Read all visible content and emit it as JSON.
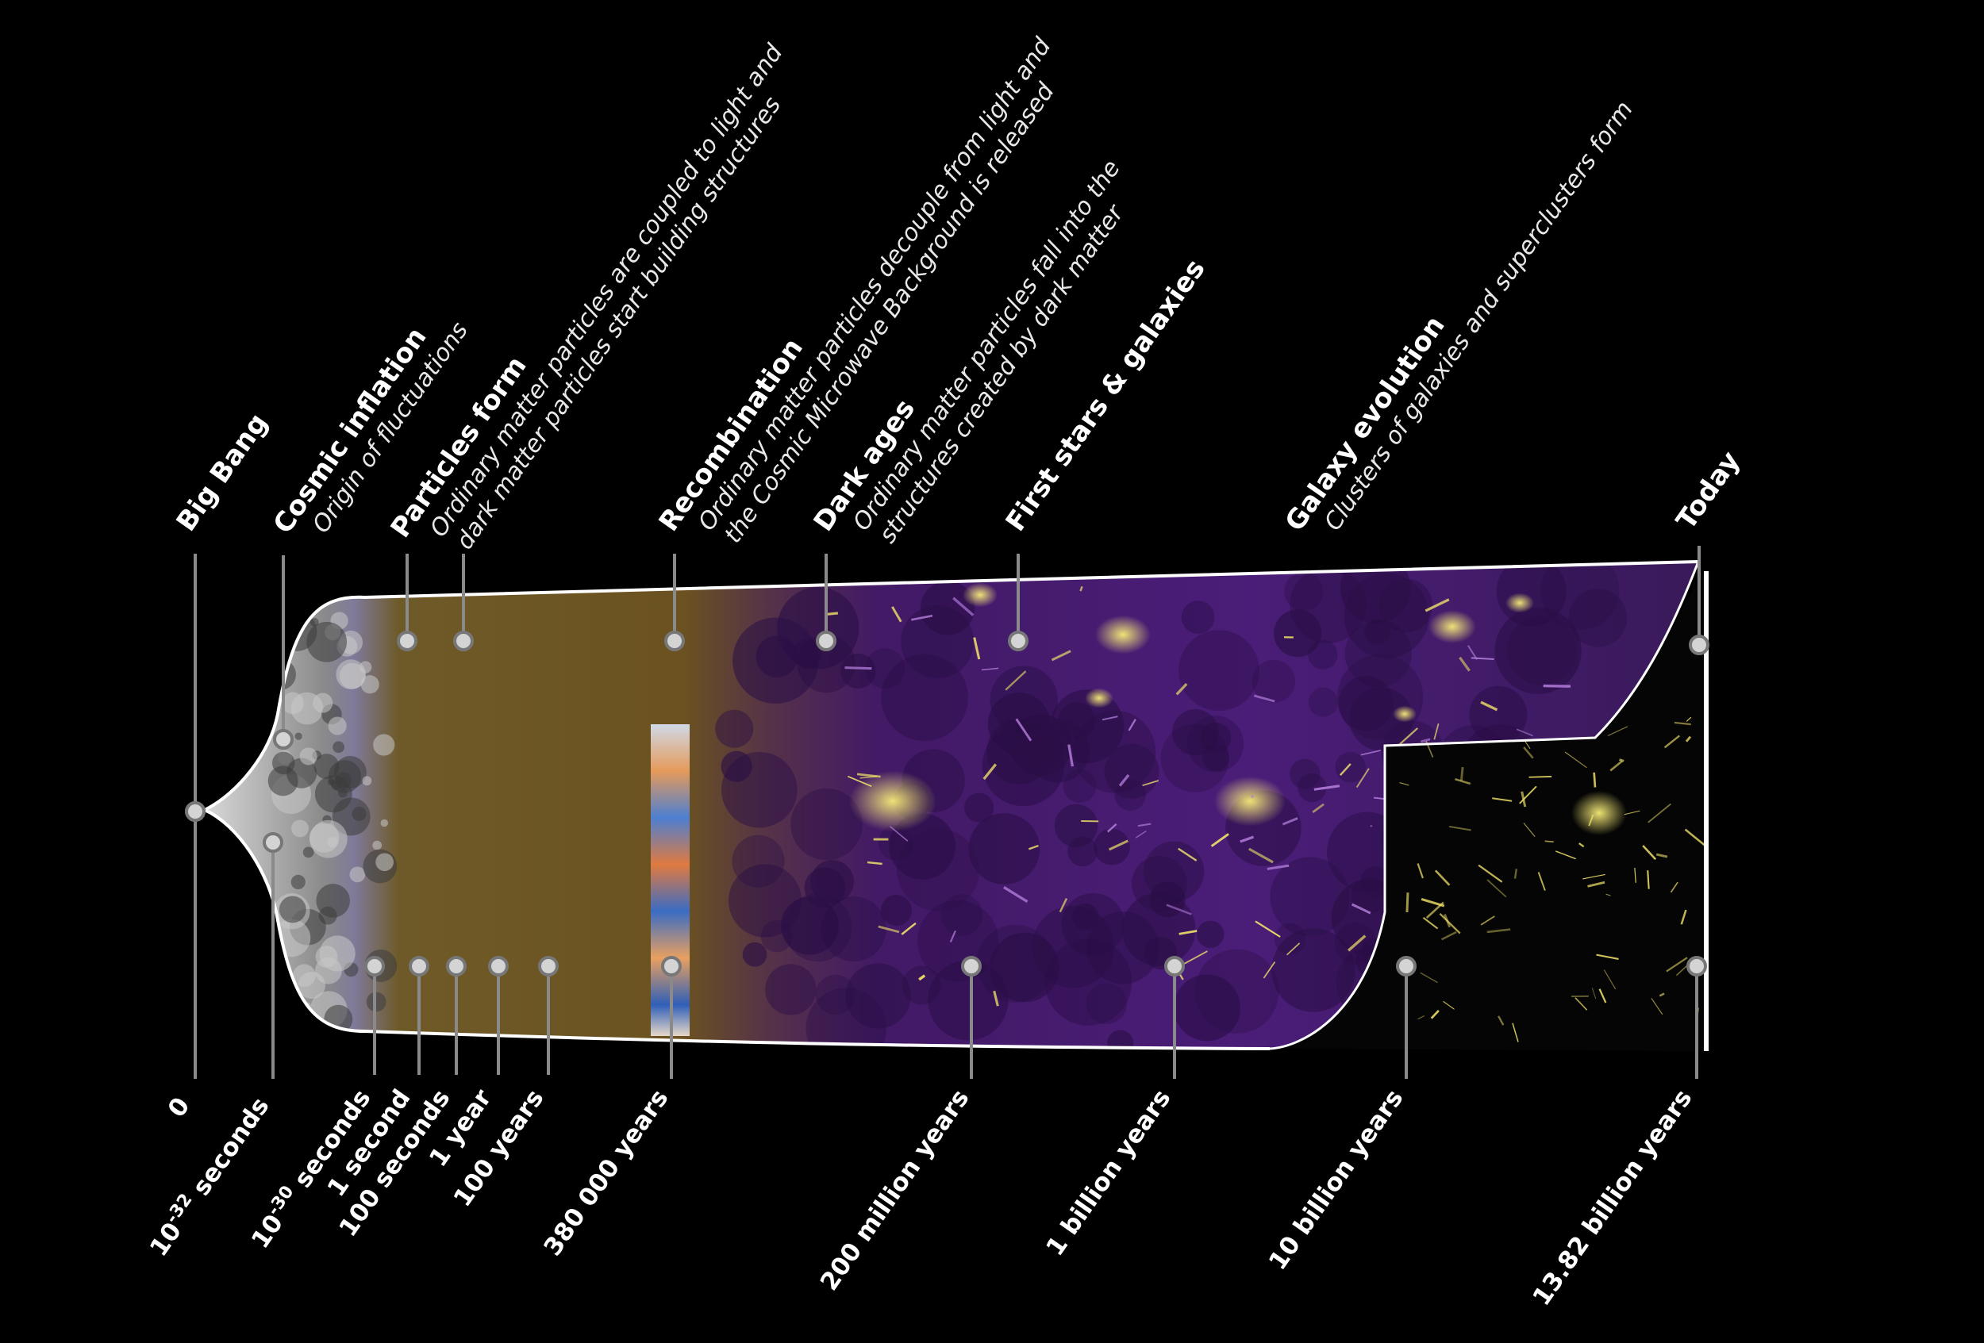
{
  "colors": {
    "background": "#000000",
    "outline": "#ffffff",
    "marker_fill": "#d4d4d4",
    "marker_stroke": "#777777",
    "line": "#8a8a8a",
    "inflation_grey": "#9a9a9a",
    "plasma_brown": "#6b5220",
    "dark_matter_purple": "#4a1d78",
    "filament_yellow": "#f2e36a"
  },
  "events": [
    {
      "id": "big-bang",
      "title": "Big Bang",
      "desc": []
    },
    {
      "id": "cosmic-inflation",
      "title": "Cosmic inflation",
      "desc": [
        "Origin of fluctuations"
      ]
    },
    {
      "id": "particles-form",
      "title": "Particles form",
      "desc": [
        "Ordinary matter particles are coupled to light and",
        "dark matter particles start building structures"
      ]
    },
    {
      "id": "recombination",
      "title": "Recombination",
      "desc": [
        "Ordinary matter particles decouple from light and",
        "the Cosmic Microwave Background is released"
      ]
    },
    {
      "id": "dark-ages",
      "title": "Dark ages",
      "desc": [
        "Ordinary  matter  particles  fall  into  the",
        "structures created by dark matter"
      ]
    },
    {
      "id": "first-stars",
      "title": "First stars & galaxies",
      "desc": []
    },
    {
      "id": "galaxy-evolution",
      "title": "Galaxy evolution",
      "desc": [
        "Clusters of galaxies and superclusters form"
      ]
    },
    {
      "id": "today",
      "title": "Today",
      "desc": []
    }
  ],
  "times": [
    {
      "id": "t-0",
      "base": "0",
      "sup": "",
      "rest": ""
    },
    {
      "id": "t-1e-32s",
      "base": "10",
      "sup": "-32",
      "rest": " seconds"
    },
    {
      "id": "t-1e-30s",
      "base": "10",
      "sup": "-30",
      "rest": " seconds"
    },
    {
      "id": "t-1s",
      "base": "1 second",
      "sup": "",
      "rest": ""
    },
    {
      "id": "t-100s",
      "base": "100 seconds",
      "sup": "",
      "rest": ""
    },
    {
      "id": "t-1y",
      "base": "1 year",
      "sup": "",
      "rest": ""
    },
    {
      "id": "t-100y",
      "base": "100 years",
      "sup": "",
      "rest": ""
    },
    {
      "id": "t-380ky",
      "base": "380 000 years",
      "sup": "",
      "rest": ""
    },
    {
      "id": "t-200my",
      "base": "200 million years",
      "sup": "",
      "rest": ""
    },
    {
      "id": "t-1by",
      "base": "1 billion years",
      "sup": "",
      "rest": ""
    },
    {
      "id": "t-10by",
      "base": "10 billion years",
      "sup": "",
      "rest": ""
    },
    {
      "id": "t-13.82by",
      "base": "13.82 billion years",
      "sup": "",
      "rest": ""
    }
  ]
}
